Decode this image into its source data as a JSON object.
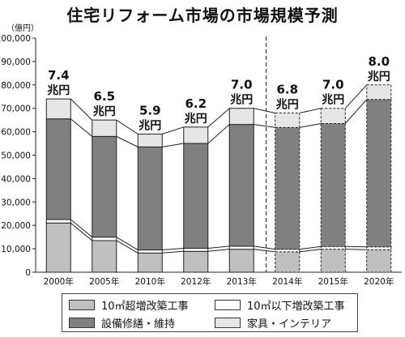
{
  "chart_data": {
    "type": "bar",
    "title": "住宅リフォーム市場の市場規模予測",
    "unit": "（億円）",
    "ylim": [
      0,
      100000
    ],
    "yticks": [
      "0",
      "10,000",
      "20,000",
      "30,000",
      "40,000",
      "50,000",
      "60,000",
      "70,000",
      "80,000",
      "90,000",
      "100,000"
    ],
    "categories": [
      "2000年",
      "2005年",
      "2010年",
      "2012年",
      "2013年",
      "2014年",
      "2015年",
      "2020年"
    ],
    "forecast_from_index": 5,
    "totals_labels": [
      [
        "7.4",
        "兆円"
      ],
      [
        "6.5",
        "兆円"
      ],
      [
        "5.9",
        "兆円"
      ],
      [
        "6.2",
        "兆円"
      ],
      [
        "7.0",
        "兆円"
      ],
      [
        "6.8",
        "兆円"
      ],
      [
        "7.0",
        "兆円"
      ],
      [
        "8.0",
        "兆円"
      ]
    ],
    "series": [
      {
        "name": "10㎡超増改築工事",
        "color": "#c0c0c0",
        "values": [
          21000,
          13500,
          8200,
          8900,
          9800,
          8700,
          9800,
          9600
        ]
      },
      {
        "name": "10㎡以下増改築工事",
        "color": "#ffffff",
        "values": [
          1500,
          1500,
          1300,
          1300,
          1300,
          1100,
          1200,
          1200
        ]
      },
      {
        "name": "設備修繕・維持",
        "color": "#808080",
        "values": [
          43000,
          43000,
          44000,
          44800,
          52000,
          52000,
          52500,
          63000
        ]
      },
      {
        "name": "家具・インテリア",
        "color": "#e6e6e6",
        "values": [
          8500,
          7000,
          5500,
          7000,
          6900,
          6200,
          6500,
          6200
        ]
      }
    ],
    "legend": {
      "position": "bottom"
    }
  }
}
